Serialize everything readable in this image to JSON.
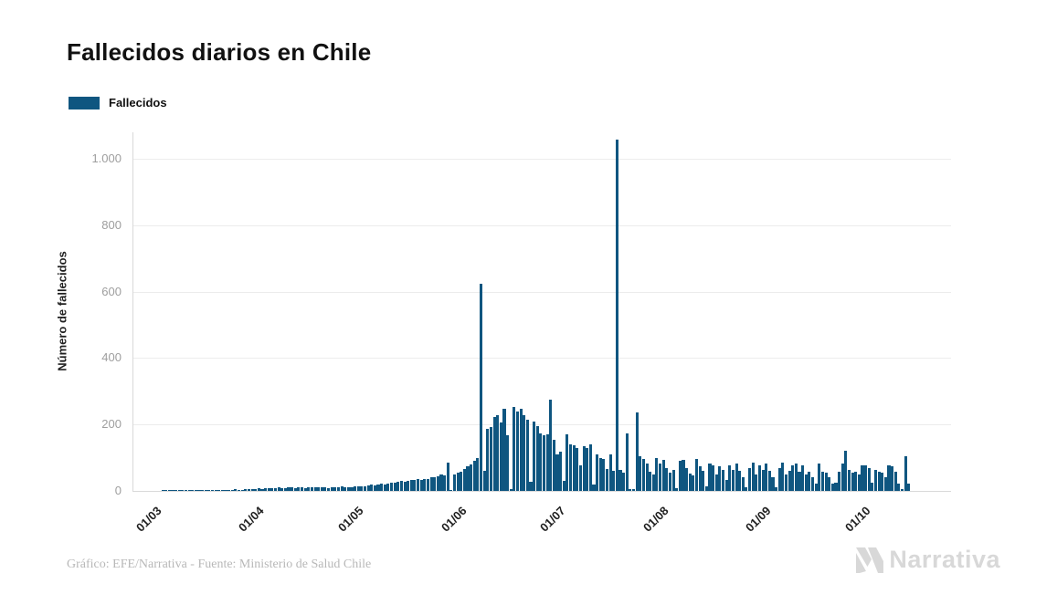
{
  "header": {
    "title": "Fallecidos diarios en Chile"
  },
  "legend": {
    "label": "Fallecidos",
    "color": "#0f5680"
  },
  "footer": {
    "credit": "Gráfico: EFE/Narrativa - Fuente: Ministerio de Salud Chile",
    "logo_text": "Narrativa"
  },
  "chart_data": {
    "type": "bar",
    "title": "Fallecidos diarios en Chile",
    "ylabel": "Número de fallecidos",
    "legend_entries": [
      "Fallecidos"
    ],
    "bar_color": "#0f5680",
    "grid": true,
    "legend_position": "top-left",
    "ylim": [
      0,
      1080
    ],
    "yticks": [
      0,
      200,
      400,
      600,
      800,
      1000
    ],
    "ytick_labels": [
      "0",
      "200",
      "400",
      "600",
      "800",
      "1.000"
    ],
    "xtick_labels": [
      "01/03",
      "01/04",
      "01/05",
      "01/06",
      "01/07",
      "01/08",
      "01/09",
      "01/10"
    ],
    "xtick_day_index": [
      0,
      31,
      61,
      92,
      122,
      153,
      184,
      214
    ],
    "values": [
      0,
      0,
      0,
      0,
      1,
      1,
      1,
      1,
      1,
      1,
      2,
      1,
      1,
      2,
      2,
      2,
      2,
      1,
      2,
      2,
      3,
      2,
      3,
      3,
      2,
      3,
      5,
      4,
      3,
      5,
      6,
      6,
      5,
      7,
      6,
      8,
      7,
      9,
      8,
      10,
      9,
      8,
      10,
      11,
      9,
      12,
      10,
      9,
      11,
      10,
      12,
      11,
      10,
      12,
      9,
      12,
      10,
      11,
      13,
      12,
      11,
      12,
      14,
      13,
      15,
      14,
      16,
      18,
      17,
      19,
      21,
      20,
      23,
      25,
      24,
      27,
      29,
      28,
      31,
      33,
      32,
      35,
      34,
      37,
      36,
      40,
      41,
      44,
      49,
      46,
      85,
      3,
      49,
      55,
      58,
      65,
      74,
      81,
      90,
      98,
      625,
      60,
      186,
      192,
      222,
      228,
      205,
      248,
      167,
      5,
      252,
      239,
      248,
      227,
      214,
      27,
      209,
      196,
      173,
      168,
      170,
      274,
      154,
      110,
      118,
      30,
      170,
      140,
      137,
      129,
      77,
      135,
      130,
      140,
      20,
      111,
      100,
      97,
      65,
      111,
      60,
      1057,
      63,
      55,
      173,
      5,
      5,
      236,
      104,
      97,
      83,
      58,
      49,
      99,
      82,
      93,
      68,
      54,
      63,
      8,
      90,
      93,
      68,
      52,
      46,
      95,
      73,
      60,
      14,
      82,
      77,
      49,
      73,
      63,
      32,
      77,
      63,
      82,
      60,
      41,
      10,
      68,
      85,
      49,
      77,
      63,
      82,
      60,
      41,
      10,
      68,
      85,
      49,
      60,
      77,
      82,
      58,
      77,
      49,
      58,
      41,
      22,
      82,
      58,
      55,
      41,
      22,
      26,
      58,
      82,
      120,
      63,
      55,
      58,
      49,
      77,
      77,
      68,
      26,
      63,
      58,
      55,
      41,
      77,
      73,
      58,
      22,
      5,
      104,
      22
    ]
  }
}
